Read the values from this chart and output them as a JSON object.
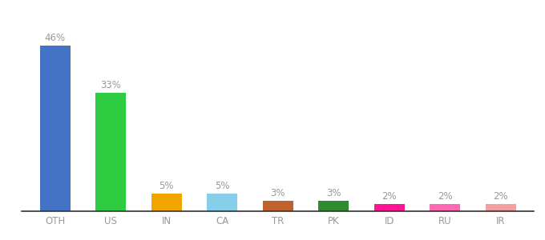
{
  "categories": [
    "OTH",
    "US",
    "IN",
    "CA",
    "TR",
    "PK",
    "ID",
    "RU",
    "IR"
  ],
  "values": [
    46,
    33,
    5,
    5,
    3,
    3,
    2,
    2,
    2
  ],
  "bar_colors": [
    "#4472c4",
    "#2ecc40",
    "#f0a500",
    "#87ceeb",
    "#c0622b",
    "#2e8b2e",
    "#ff1493",
    "#ff69b4",
    "#f4a0a0"
  ],
  "labels": [
    "46%",
    "33%",
    "5%",
    "5%",
    "3%",
    "3%",
    "2%",
    "2%",
    "2%"
  ],
  "ylim": [
    0,
    52
  ],
  "background_color": "#ffffff",
  "bar_width": 0.55,
  "label_fontsize": 8.5,
  "tick_fontsize": 8.5,
  "label_color": "#999999",
  "tick_color": "#999999"
}
